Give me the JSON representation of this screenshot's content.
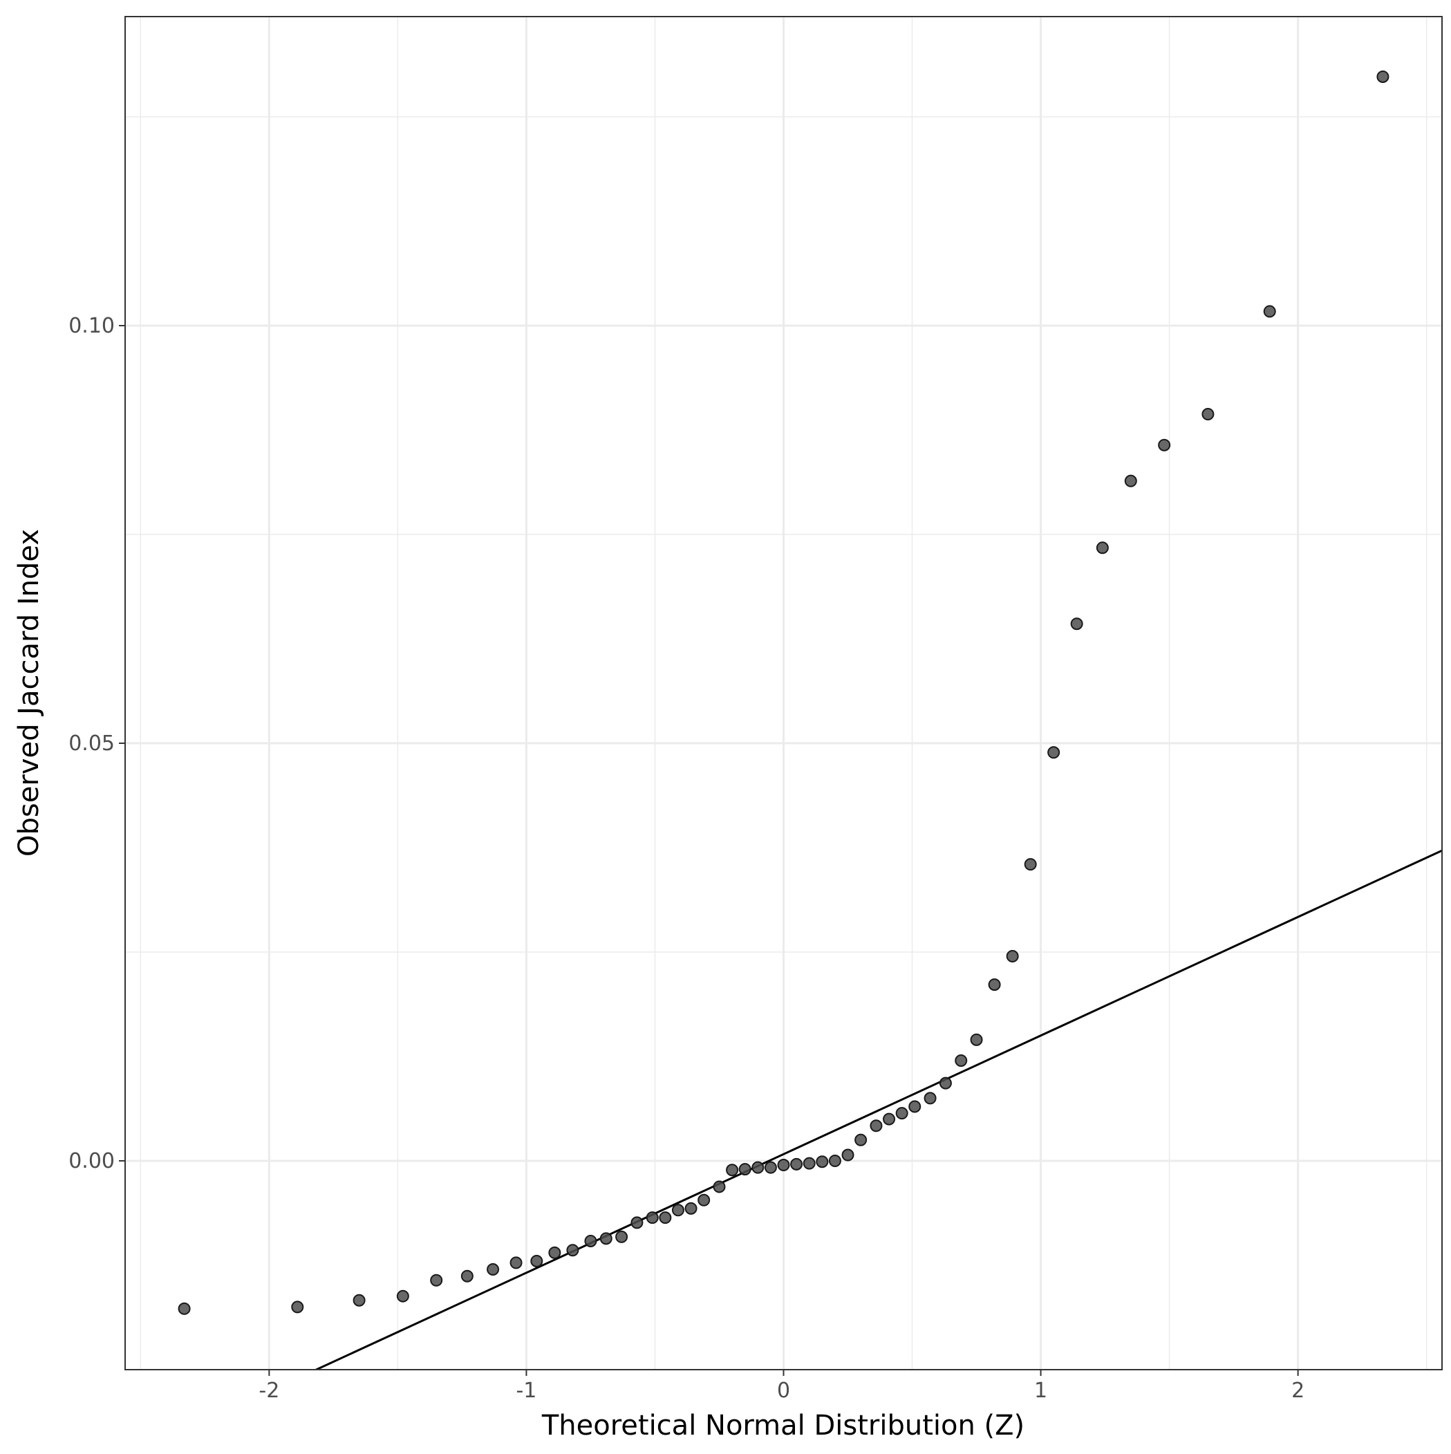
{
  "chart_data": {
    "type": "scatter",
    "title": "",
    "xlabel": "Theoretical Normal Distribution (Z)",
    "ylabel": "Observed Jaccard Index",
    "xlim": [
      -2.56,
      2.56
    ],
    "ylim": [
      -0.025,
      0.137
    ],
    "x_ticks": [
      {
        "value": -2,
        "label": "-2"
      },
      {
        "value": -1,
        "label": "-1"
      },
      {
        "value": 0,
        "label": "0"
      },
      {
        "value": 1,
        "label": "1"
      },
      {
        "value": 2,
        "label": "2"
      }
    ],
    "y_ticks": [
      {
        "value": 0.0,
        "label": "0.00"
      },
      {
        "value": 0.05,
        "label": "0.05"
      },
      {
        "value": 0.1,
        "label": "0.10"
      }
    ],
    "grid": true,
    "point_color": "#4d4d4d",
    "line_color": "#000000",
    "reference_line": {
      "intercept": 0.0008,
      "slope": 0.0142
    },
    "points": [
      {
        "x": -2.33,
        "y": -0.0177
      },
      {
        "x": -1.89,
        "y": -0.0175
      },
      {
        "x": -1.65,
        "y": -0.0167
      },
      {
        "x": -1.48,
        "y": -0.0162
      },
      {
        "x": -1.35,
        "y": -0.0143
      },
      {
        "x": -1.23,
        "y": -0.0138
      },
      {
        "x": -1.13,
        "y": -0.013
      },
      {
        "x": -1.04,
        "y": -0.0122
      },
      {
        "x": -0.96,
        "y": -0.012
      },
      {
        "x": -0.89,
        "y": -0.011
      },
      {
        "x": -0.82,
        "y": -0.0107
      },
      {
        "x": -0.75,
        "y": -0.0096
      },
      {
        "x": -0.69,
        "y": -0.0093
      },
      {
        "x": -0.63,
        "y": -0.0091
      },
      {
        "x": -0.57,
        "y": -0.0074
      },
      {
        "x": -0.51,
        "y": -0.0068
      },
      {
        "x": -0.46,
        "y": -0.0068
      },
      {
        "x": -0.41,
        "y": -0.0059
      },
      {
        "x": -0.36,
        "y": -0.0057
      },
      {
        "x": -0.31,
        "y": -0.0047
      },
      {
        "x": -0.25,
        "y": -0.0031
      },
      {
        "x": -0.2,
        "y": -0.0011
      },
      {
        "x": -0.15,
        "y": -0.001
      },
      {
        "x": -0.1,
        "y": -0.0008
      },
      {
        "x": -0.05,
        "y": -0.0008
      },
      {
        "x": 0.0,
        "y": -0.0005
      },
      {
        "x": 0.05,
        "y": -0.0004
      },
      {
        "x": 0.1,
        "y": -0.0003
      },
      {
        "x": 0.15,
        "y": -0.0001
      },
      {
        "x": 0.2,
        "y": 0.0
      },
      {
        "x": 0.25,
        "y": 0.0007
      },
      {
        "x": 0.3,
        "y": 0.0025
      },
      {
        "x": 0.36,
        "y": 0.0042
      },
      {
        "x": 0.41,
        "y": 0.005
      },
      {
        "x": 0.46,
        "y": 0.0057
      },
      {
        "x": 0.51,
        "y": 0.0065
      },
      {
        "x": 0.57,
        "y": 0.0075
      },
      {
        "x": 0.63,
        "y": 0.0093
      },
      {
        "x": 0.69,
        "y": 0.012
      },
      {
        "x": 0.75,
        "y": 0.0145
      },
      {
        "x": 0.82,
        "y": 0.0211
      },
      {
        "x": 0.89,
        "y": 0.0245
      },
      {
        "x": 0.96,
        "y": 0.0355
      },
      {
        "x": 1.05,
        "y": 0.0489
      },
      {
        "x": 1.14,
        "y": 0.0643
      },
      {
        "x": 1.24,
        "y": 0.0734
      },
      {
        "x": 1.35,
        "y": 0.0814
      },
      {
        "x": 1.48,
        "y": 0.0857
      },
      {
        "x": 1.65,
        "y": 0.0894
      },
      {
        "x": 1.89,
        "y": 0.1017
      },
      {
        "x": 2.33,
        "y": 0.1298
      }
    ]
  }
}
